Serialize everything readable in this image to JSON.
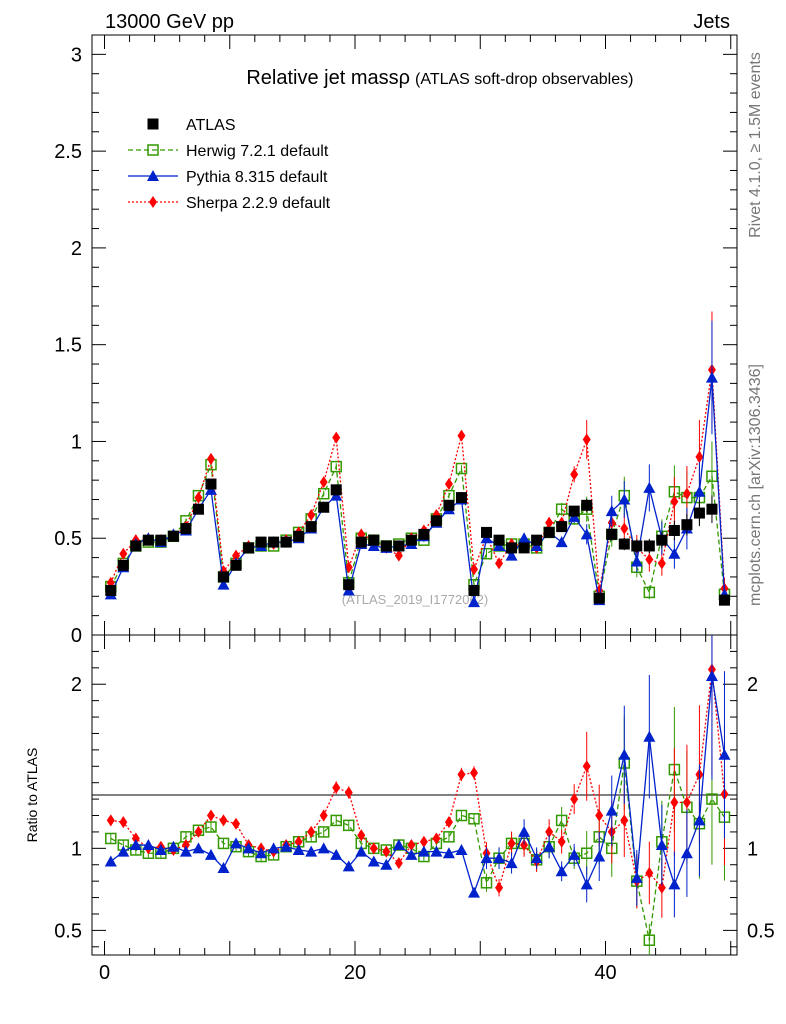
{
  "header": {
    "left": "13000 GeV pp",
    "right": "Jets"
  },
  "side_labels": {
    "rivet": "Rivet 4.1.0, ≥ 1.5M events",
    "mcplots": "mcplots.cern.ch [arXiv:1306.3436]"
  },
  "chart_data": {
    "type": "scatter",
    "title": "Relative jet massρ",
    "subtitle": "(ATLAS soft-drop observables)",
    "watermark": "(ATLAS_2019_I1772062)",
    "x": [
      0.5,
      1.5,
      2.5,
      3.5,
      4.5,
      5.5,
      6.5,
      7.5,
      8.5,
      9.5,
      10.5,
      11.5,
      12.5,
      13.5,
      14.5,
      15.5,
      16.5,
      17.5,
      18.5,
      19.5,
      20.5,
      21.5,
      22.5,
      23.5,
      24.5,
      25.5,
      26.5,
      27.5,
      28.5,
      29.5,
      30.5,
      31.5,
      32.5,
      33.5,
      34.5,
      35.5,
      36.5,
      37.5,
      38.5,
      39.5,
      40.5,
      41.5,
      42.5,
      43.5,
      44.5,
      45.5,
      46.5,
      47.5,
      48.5,
      49.5
    ],
    "xlim": [
      -1,
      50.5
    ],
    "xticks": [
      "0",
      "20",
      "40"
    ],
    "main": {
      "ylim": [
        0,
        3.1
      ],
      "yticks": [
        "0",
        "0.5",
        "1",
        "1.5",
        "2",
        "2.5",
        "3"
      ]
    },
    "ratio": {
      "ylabel": "Ratio to ATLAS",
      "ylim": [
        0.35,
        2.3
      ],
      "yticks": [
        "0.5",
        "1",
        "2"
      ]
    },
    "series": [
      {
        "name": "ATLAS",
        "color": "#000000",
        "marker": "square",
        "values": [
          0.23,
          0.36,
          0.46,
          0.49,
          0.49,
          0.51,
          0.55,
          0.65,
          0.78,
          0.3,
          0.36,
          0.45,
          0.48,
          0.48,
          0.48,
          0.51,
          0.56,
          0.66,
          0.75,
          0.26,
          0.48,
          0.49,
          0.46,
          0.46,
          0.49,
          0.52,
          0.59,
          0.67,
          0.71,
          0.23,
          0.53,
          0.49,
          0.45,
          0.45,
          0.49,
          0.53,
          0.56,
          0.64,
          0.67,
          0.19,
          0.52,
          0.47,
          0.46,
          0.46,
          0.49,
          0.54,
          0.57,
          0.63,
          0.65,
          0.18
        ],
        "ratio": [
          1,
          1,
          1,
          1,
          1,
          1,
          1,
          1,
          1,
          1,
          1,
          1,
          1,
          1,
          1,
          1,
          1,
          1,
          1,
          1,
          1,
          1,
          1,
          1,
          1,
          1,
          1,
          1,
          1,
          1,
          1,
          1,
          1,
          1,
          1,
          1,
          1,
          1,
          1,
          1,
          1,
          1,
          1,
          1,
          1,
          1,
          1,
          1,
          1,
          1
        ]
      },
      {
        "name": "Herwig 7.2.1 default",
        "color": "#339900",
        "marker": "open-square",
        "dash": "dashed",
        "values": [
          0.25,
          0.37,
          0.46,
          0.48,
          0.48,
          0.51,
          0.59,
          0.72,
          0.88,
          0.3,
          0.37,
          0.45,
          0.46,
          0.46,
          0.49,
          0.53,
          0.6,
          0.73,
          0.87,
          0.27,
          0.5,
          0.49,
          0.46,
          0.47,
          0.5,
          0.49,
          0.6,
          0.72,
          0.86,
          0.26,
          0.42,
          0.46,
          0.47,
          0.47,
          0.45,
          0.53,
          0.65,
          0.6,
          0.65,
          0.2,
          0.52,
          0.72,
          0.35,
          0.22,
          0.51,
          0.74,
          0.71,
          0.71,
          0.82,
          0.21
        ],
        "ratio": [
          1.06,
          1.02,
          0.99,
          0.97,
          0.97,
          1.0,
          1.07,
          1.11,
          1.13,
          1.03,
          1.01,
          0.98,
          0.95,
          0.96,
          1.01,
          1.04,
          1.07,
          1.1,
          1.17,
          1.14,
          1.03,
          1.0,
          0.99,
          1.02,
          1.0,
          0.95,
          1.03,
          1.07,
          1.2,
          1.18,
          0.79,
          0.94,
          1.03,
          1.03,
          0.93,
          1.01,
          1.17,
          0.94,
          0.97,
          1.07,
          1.0,
          1.52,
          0.8,
          0.44,
          1.04,
          1.48,
          1.25,
          1.15,
          1.3,
          1.19
        ]
      },
      {
        "name": "Pythia 8.315 default",
        "color": "#0022cc",
        "marker": "triangle",
        "dash": "solid",
        "values": [
          0.21,
          0.35,
          0.47,
          0.5,
          0.48,
          0.52,
          0.54,
          0.65,
          0.75,
          0.26,
          0.37,
          0.45,
          0.46,
          0.48,
          0.48,
          0.5,
          0.55,
          0.66,
          0.72,
          0.23,
          0.47,
          0.46,
          0.45,
          0.46,
          0.47,
          0.51,
          0.58,
          0.65,
          0.7,
          0.17,
          0.5,
          0.46,
          0.41,
          0.5,
          0.46,
          0.53,
          0.48,
          0.61,
          0.52,
          0.18,
          0.64,
          0.7,
          0.38,
          0.76,
          0.5,
          0.42,
          0.55,
          0.74,
          1.33,
          0.21
        ],
        "ratio": [
          0.92,
          0.98,
          1.02,
          1.02,
          0.99,
          1.01,
          0.98,
          1.0,
          0.96,
          0.88,
          1.03,
          1.0,
          0.97,
          1.0,
          1.01,
          0.99,
          0.98,
          1.0,
          0.96,
          0.89,
          0.98,
          0.92,
          0.9,
          1.02,
          0.96,
          0.98,
          0.98,
          0.97,
          0.99,
          0.73,
          0.94,
          0.94,
          0.91,
          1.1,
          0.94,
          1.01,
          0.86,
          0.96,
          0.78,
          0.95,
          1.23,
          1.57,
          0.82,
          1.68,
          1.02,
          0.78,
          0.97,
          1.17,
          2.05,
          1.57
        ]
      },
      {
        "name": "Sherpa 2.2.9 default",
        "color": "#ff0000",
        "marker": "diamond",
        "dash": "dotted",
        "values": [
          0.27,
          0.42,
          0.49,
          0.49,
          0.49,
          0.51,
          0.56,
          0.71,
          0.91,
          0.33,
          0.41,
          0.46,
          0.47,
          0.47,
          0.49,
          0.53,
          0.62,
          0.79,
          1.02,
          0.35,
          0.52,
          0.49,
          0.45,
          0.41,
          0.5,
          0.54,
          0.62,
          0.78,
          1.03,
          0.34,
          0.51,
          0.37,
          0.47,
          0.46,
          0.45,
          0.58,
          0.58,
          0.83,
          1.01,
          0.23,
          0.58,
          0.55,
          0.45,
          0.39,
          0.37,
          0.69,
          0.73,
          0.92,
          1.37,
          0.24
        ],
        "ratio": [
          1.17,
          1.16,
          1.06,
          1.0,
          1.01,
          0.99,
          1.02,
          1.1,
          1.2,
          1.17,
          1.15,
          1.02,
          1.0,
          0.98,
          1.02,
          1.04,
          1.1,
          1.2,
          1.37,
          1.34,
          1.08,
          1.0,
          0.98,
          0.91,
          1.02,
          1.04,
          1.06,
          1.16,
          1.45,
          1.46,
          0.97,
          0.76,
          1.03,
          1.02,
          0.92,
          1.1,
          1.04,
          1.3,
          1.5,
          1.2,
          1.1,
          1.17,
          0.8,
          0.85,
          0.76,
          1.28,
          1.28,
          1.45,
          2.09,
          1.33
        ]
      }
    ]
  }
}
